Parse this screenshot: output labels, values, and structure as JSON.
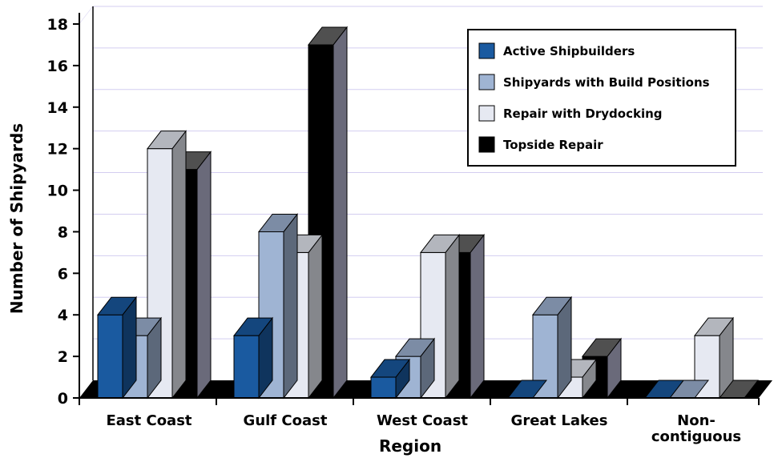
{
  "chart_data": {
    "type": "bar",
    "title": "",
    "xlabel": "Region",
    "ylabel": "Number of Shipyards",
    "ylim": [
      0,
      18
    ],
    "yticks": [
      0,
      2,
      4,
      6,
      8,
      10,
      12,
      14,
      16,
      18
    ],
    "grid": true,
    "legend_position": "top-right",
    "categories": [
      [
        "East Coast"
      ],
      [
        "Gulf Coast"
      ],
      [
        "West Coast"
      ],
      [
        "Great Lakes"
      ],
      [
        "Non-",
        "contiguous"
      ]
    ],
    "series": [
      {
        "name": "Active Shipbuilders",
        "values": [
          4,
          3,
          1,
          0,
          0
        ],
        "color": "#1a5aa0"
      },
      {
        "name": "Shipyards with Build Positions",
        "values": [
          3,
          8,
          2,
          4,
          0
        ],
        "color": "#9fb4d3"
      },
      {
        "name": "Repair with Drydocking",
        "values": [
          12,
          7,
          7,
          1,
          3
        ],
        "color": "#e6e9f2"
      },
      {
        "name": "Topside Repair",
        "values": [
          11,
          17,
          7,
          2,
          0
        ],
        "color": "#000000"
      }
    ]
  }
}
